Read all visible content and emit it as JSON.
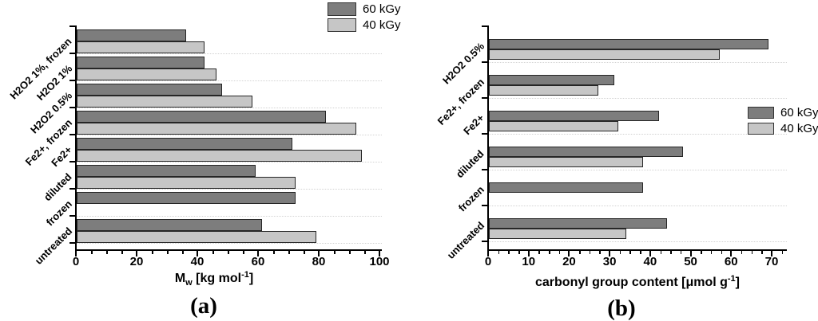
{
  "colors": {
    "bar_dark": "#7d7d7d",
    "bar_light": "#c6c6c6",
    "bar_border": "#262626",
    "axis": "#000000",
    "gridline": "#d2d2d2",
    "background": "#ffffff"
  },
  "legend_labels": [
    "60 kGy",
    "40 kGy"
  ],
  "chart_data": [
    {
      "id": "a",
      "type": "bar",
      "orientation": "horizontal",
      "caption": "(a)",
      "xlabel_plain": "Mw [kg mol-1]",
      "xlabel_parts": [
        {
          "t": "M"
        },
        {
          "t": "w",
          "style": "sub"
        },
        {
          "t": " [kg mol"
        },
        {
          "t": "-1",
          "style": "sup"
        },
        {
          "t": "]"
        }
      ],
      "categories": [
        "H2O2 1%, frozen",
        "H2O2 1%",
        "H2O2 0.5%",
        "Fe2+, frozen",
        "Fe2+",
        "diluted",
        "frozen",
        "untreated"
      ],
      "series": [
        {
          "name": "60 kGy",
          "color_key": "bar_dark",
          "values": [
            36,
            42,
            48,
            82,
            71,
            59,
            72,
            61
          ]
        },
        {
          "name": "40 kGy",
          "color_key": "bar_light",
          "values": [
            42,
            46,
            58,
            92,
            94,
            72,
            null,
            79
          ]
        }
      ],
      "xlim": [
        0,
        100
      ],
      "xticks": [
        0,
        20,
        40,
        60,
        80,
        100
      ],
      "minor_tick_step": 5,
      "grid": "dotted horizontal lines at category boundaries",
      "legend_position": "top-right"
    },
    {
      "id": "b",
      "type": "bar",
      "orientation": "horizontal",
      "caption": "(b)",
      "xlabel_plain": "carbonyl group content [μmol g-1]",
      "xlabel_parts": [
        {
          "t": "carbonyl group content [μmol g"
        },
        {
          "t": "-1",
          "style": "sup"
        },
        {
          "t": "]"
        }
      ],
      "categories": [
        "H2O2 0.5%",
        "Fe2+, frozen",
        "Fe2+",
        "diluted",
        "frozen",
        "untreated"
      ],
      "series": [
        {
          "name": "60 kGy",
          "color_key": "bar_dark",
          "values": [
            69,
            31,
            42,
            48,
            38,
            44
          ]
        },
        {
          "name": "40 kGy",
          "color_key": "bar_light",
          "values": [
            57,
            27,
            32,
            38,
            null,
            34
          ]
        }
      ],
      "xlim": [
        0,
        70
      ],
      "xticks": [
        0,
        10,
        20,
        30,
        40,
        50,
        60,
        70
      ],
      "minor_tick_step": 2.5,
      "grid": "dotted horizontal lines at category boundaries",
      "legend_position": "middle-right"
    }
  ]
}
